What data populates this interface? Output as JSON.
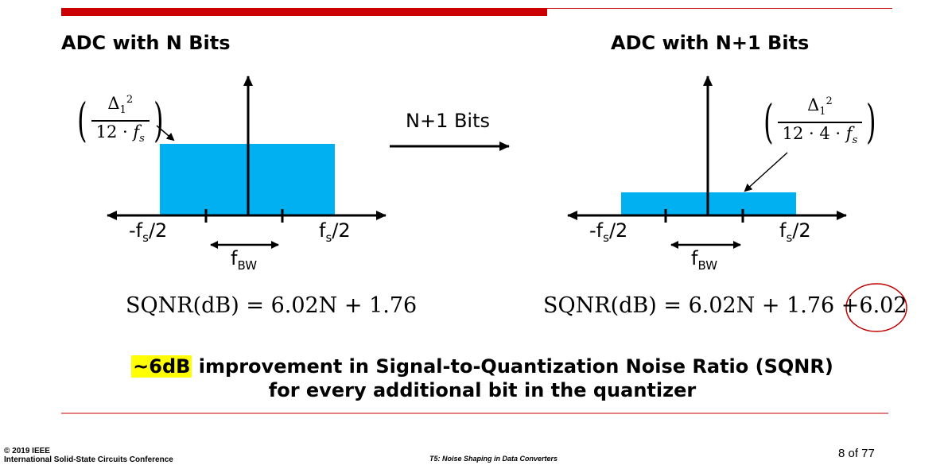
{
  "colors": {
    "accent_red": "#cc0000",
    "noise_fill": "#00b0f0",
    "highlight": "#ffff00",
    "circle": "#c00000"
  },
  "left_panel": {
    "title": "ADC with N Bits",
    "psd_num": "Δ",
    "psd_num_sub": "1",
    "psd_num_sup": "2",
    "psd_den": "12 · ",
    "psd_den_var": "f",
    "psd_den_var_sub": "s",
    "neg_label": "-f",
    "neg_sub": "s",
    "neg_tail": "/2",
    "pos_label": "f",
    "pos_sub": "s",
    "pos_tail": "/2",
    "bw_label": "f",
    "bw_sub": "BW",
    "equation": "SQNR(dB) = 6.02N + 1.76"
  },
  "transition": {
    "label": "N+1 Bits",
    "arrow_icon": "right-arrow-icon"
  },
  "right_panel": {
    "title": "ADC with N+1 Bits",
    "psd_num": "Δ",
    "psd_num_sub": "1",
    "psd_num_sup": "2",
    "psd_den": "12 · 4 · ",
    "psd_den_var": "f",
    "psd_den_var_sub": "s",
    "neg_label": "-f",
    "neg_sub": "s",
    "neg_tail": "/2",
    "pos_label": "f",
    "pos_sub": "s",
    "pos_tail": "/2",
    "bw_label": "f",
    "bw_sub": "BW",
    "equation": "SQNR(dB) = 6.02N + 1.76 +",
    "equation_added_term": "6.02"
  },
  "message": {
    "highlight": "~6dB",
    "line1_rest": " improvement in Signal-to-Quantization Noise Ratio (SQNR)",
    "line2": "for every additional bit in the quantizer"
  },
  "footer": {
    "copyright": "© 2019 IEEE",
    "conference": "International Solid-State Circuits Conference",
    "session": "T5: Noise Shaping in Data Converters",
    "page": "8 of 77"
  }
}
